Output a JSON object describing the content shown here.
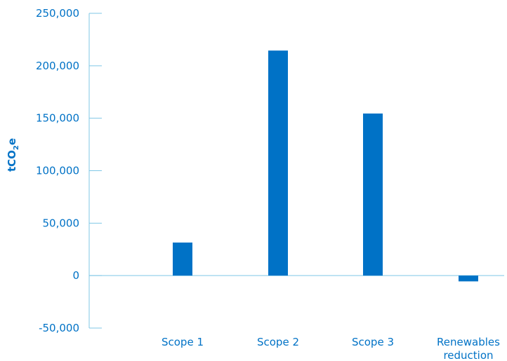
{
  "chart_data": {
    "type": "bar",
    "ylabel": {
      "main": "tCO",
      "sub": "2",
      "suffix": "e"
    },
    "ylim": [
      -50000,
      250000
    ],
    "yticks": [
      {
        "value": 250000,
        "label": "250,000"
      },
      {
        "value": 200000,
        "label": "200,000"
      },
      {
        "value": 150000,
        "label": "150,000"
      },
      {
        "value": 100000,
        "label": "100,000"
      },
      {
        "value": 50000,
        "label": "50,000"
      },
      {
        "value": 0,
        "label": "0"
      },
      {
        "value": -50000,
        "label": "-50,000"
      }
    ],
    "categories": [
      {
        "lines": [
          "Scope 1"
        ]
      },
      {
        "lines": [
          "Scope 2"
        ]
      },
      {
        "lines": [
          "Scope 3"
        ]
      },
      {
        "lines": [
          "Renewables",
          "reduction"
        ]
      }
    ],
    "values": [
      31500,
      214500,
      154500,
      -5500
    ],
    "colors": {
      "bar": "#0072C6",
      "axis": "#7fc7e6",
      "text": "#0072C6"
    }
  }
}
